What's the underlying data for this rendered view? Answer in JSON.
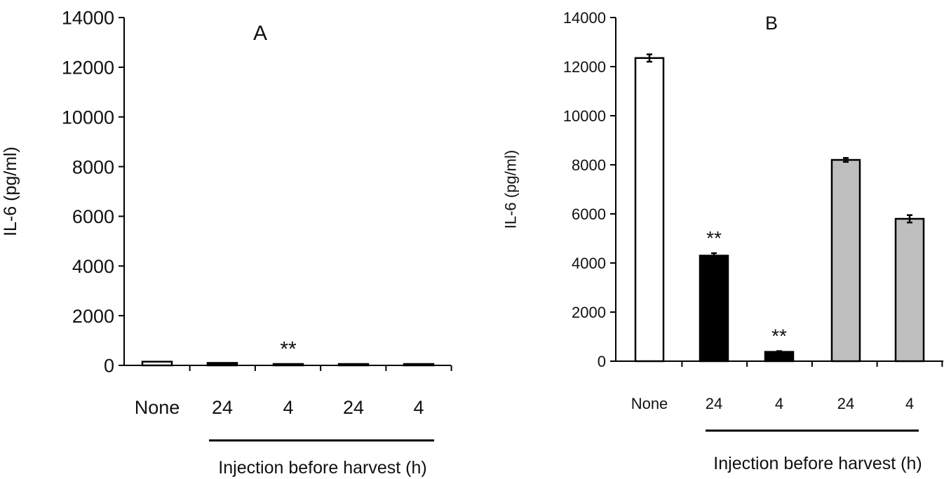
{
  "chart_data": [
    {
      "type": "bar",
      "title": "A",
      "ylabel": "IL-6 (pg/ml)",
      "xlabel": "Injection before harvest (h)",
      "categories": [
        "None",
        "24",
        "4",
        "24",
        "4"
      ],
      "values": [
        150,
        100,
        20,
        30,
        50
      ],
      "errors": [
        0,
        0,
        0,
        0,
        0
      ],
      "bar_colors": [
        "#ffffff",
        "#000000",
        "#000000",
        "#bfbfbf",
        "#bfbfbf"
      ],
      "annotations": [
        "",
        "",
        "**",
        "",
        ""
      ],
      "yticks": [
        "0",
        "2000",
        "4000",
        "6000",
        "8000",
        "10000",
        "12000",
        "14000"
      ],
      "ylim": [
        0,
        14000
      ],
      "grid": false,
      "legend": "none"
    },
    {
      "type": "bar",
      "title": "B",
      "ylabel": "IL-6 (pg/ml)",
      "xlabel": "Injection before harvest (h)",
      "categories": [
        "None",
        "24",
        "4",
        "24",
        "4"
      ],
      "values": [
        12350,
        4300,
        380,
        8200,
        5800
      ],
      "errors": [
        150,
        100,
        30,
        80,
        150
      ],
      "bar_colors": [
        "#ffffff",
        "#000000",
        "#000000",
        "#bfbfbf",
        "#bfbfbf"
      ],
      "annotations": [
        "",
        "**",
        "**",
        "",
        ""
      ],
      "yticks": [
        "0",
        "2000",
        "4000",
        "6000",
        "8000",
        "10000",
        "12000",
        "14000"
      ],
      "ylim": [
        0,
        14000
      ],
      "grid": false,
      "legend": "none"
    }
  ]
}
